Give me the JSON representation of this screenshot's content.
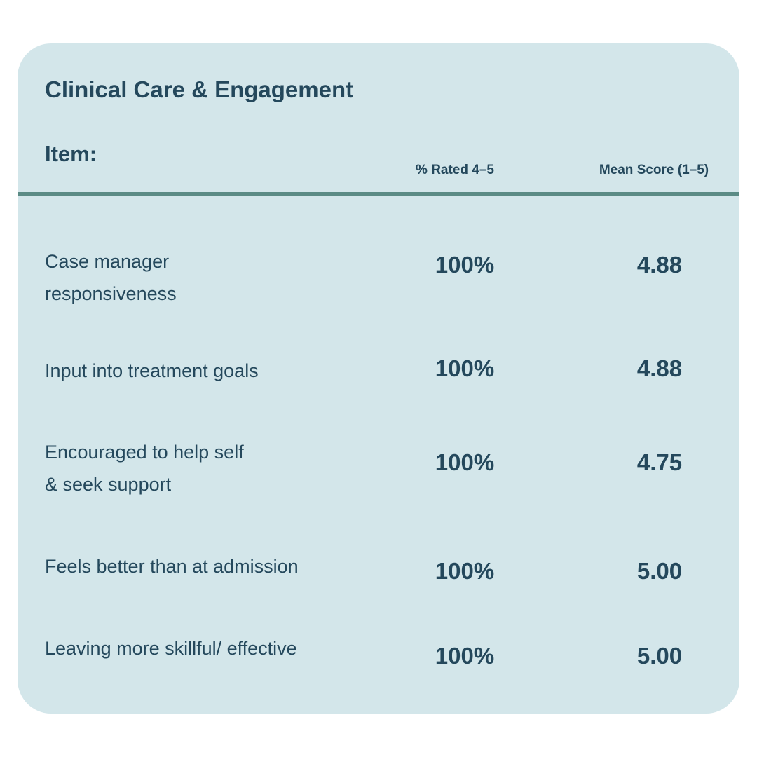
{
  "card": {
    "title": "Clinical Care & Engagement",
    "header": {
      "item_label": "Item:",
      "pct_label": "% Rated 4–5",
      "mean_label": "Mean Score (1–5)"
    },
    "rows": [
      {
        "label": "Case manager\nresponsiveness",
        "pct": "100%",
        "mean": "4.88"
      },
      {
        "label": "Input into treatment goals",
        "pct": "100%",
        "mean": "4.88"
      },
      {
        "label": "Encouraged to help self\n& seek support",
        "pct": "100%",
        "mean": "4.75"
      },
      {
        "label": "Feels better than at admission",
        "pct": "100%",
        "mean": "5.00"
      },
      {
        "label": "Leaving more skillful/ effective",
        "pct": "100%",
        "mean": "5.00"
      }
    ]
  },
  "colors": {
    "card_background": "#d3e6ea",
    "text": "#24485c",
    "divider": "#5b8b85"
  }
}
